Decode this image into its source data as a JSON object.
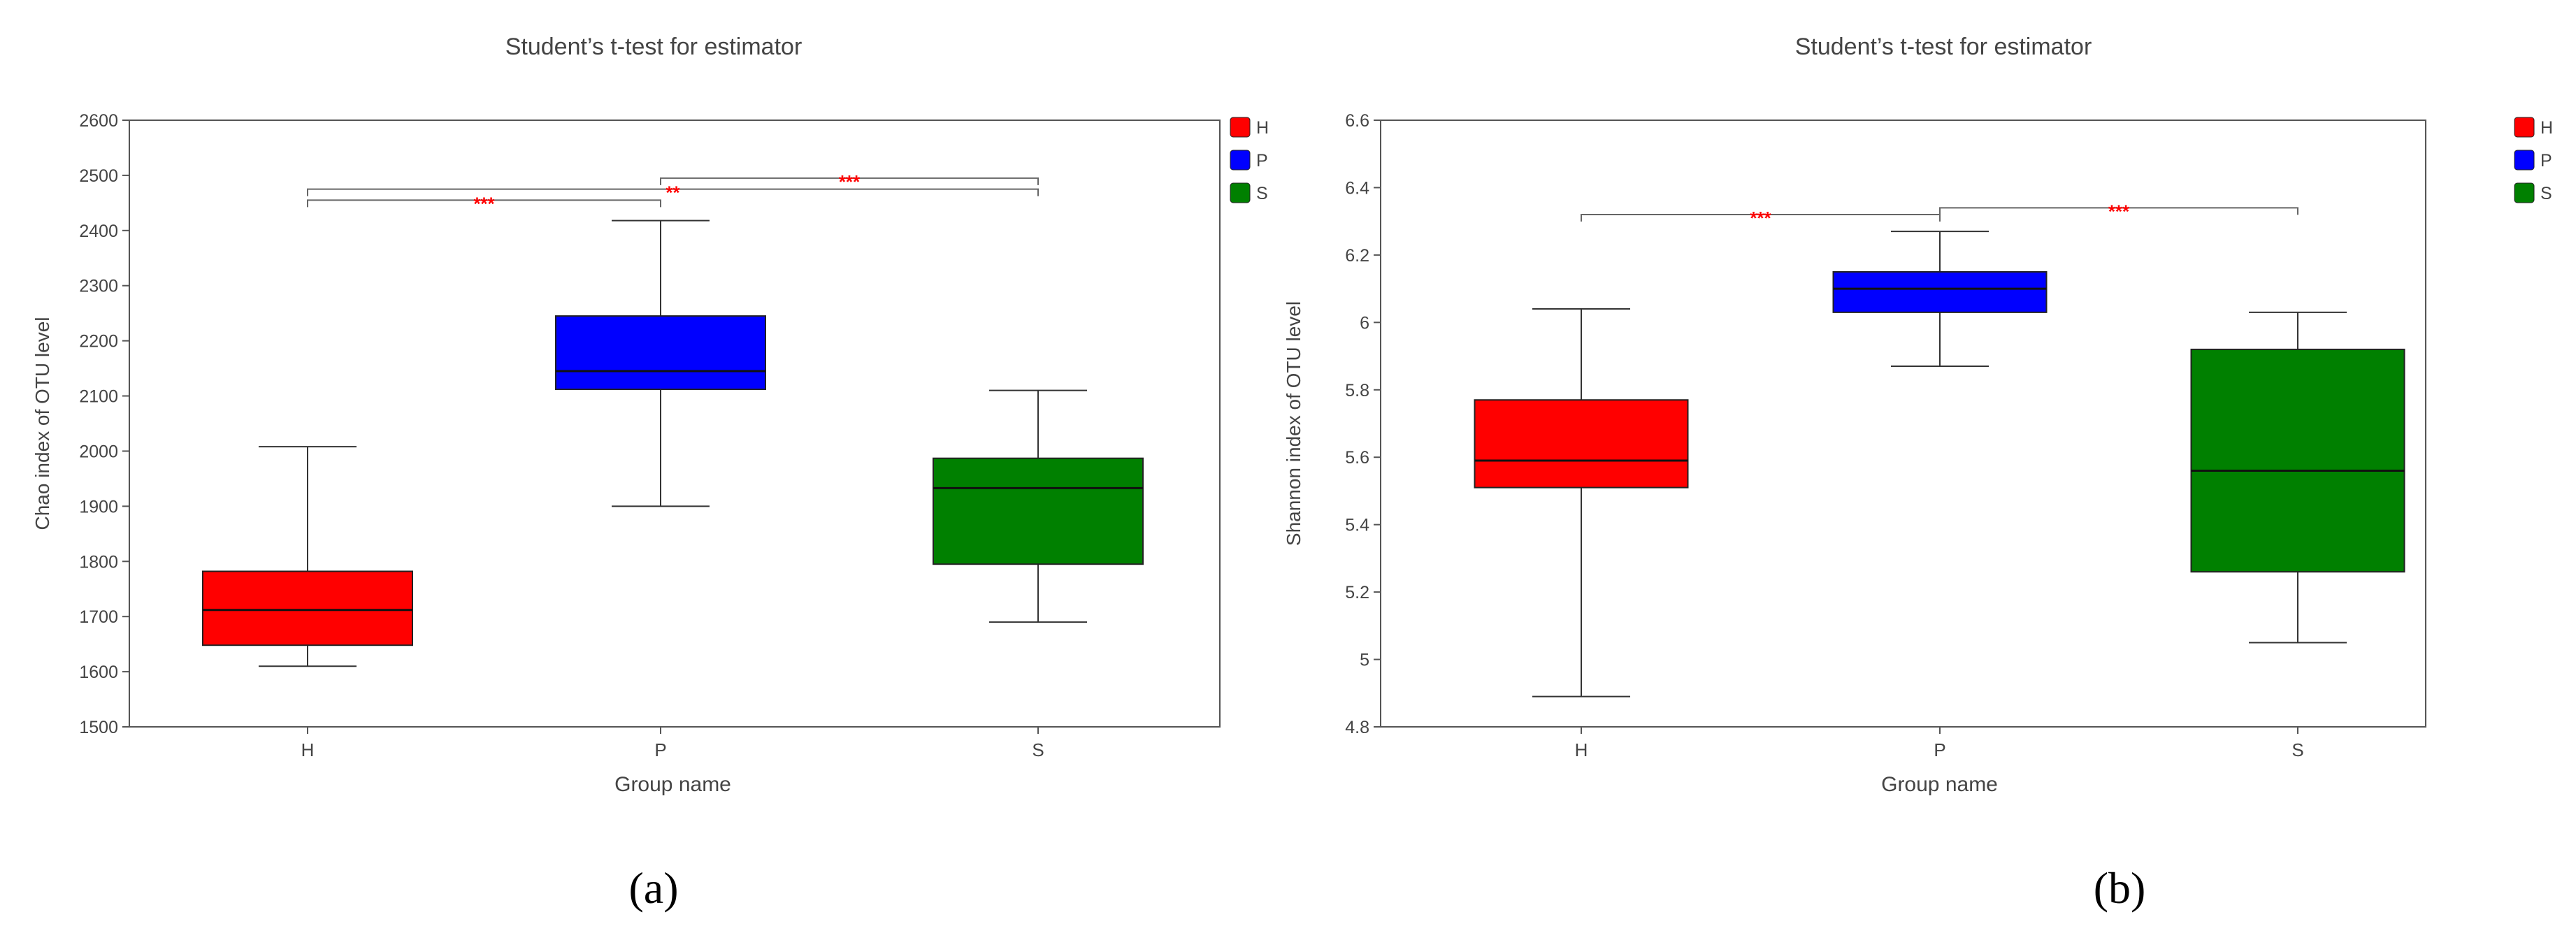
{
  "chart_data": [
    {
      "type": "box",
      "title": "Student’s t-test for estimator",
      "xlabel": "Group name",
      "ylabel": "Chao index of OTU level",
      "ylim": [
        1500,
        2600
      ],
      "yticks": [
        "1500",
        "1600",
        "1700",
        "1800",
        "1900",
        "2000",
        "2100",
        "2200",
        "2300",
        "2400",
        "2500",
        "2600"
      ],
      "categories": [
        "H",
        "P",
        "S"
      ],
      "legend_position": "top-right",
      "grid": false,
      "caption": "(a)",
      "series": [
        {
          "name": "H",
          "color": "#ff0000",
          "min": 1610,
          "q1": 1648,
          "median": 1712,
          "q3": 1782,
          "max": 2008
        },
        {
          "name": "P",
          "color": "#0000ff",
          "min": 1900,
          "q1": 2112,
          "median": 2145,
          "q3": 2245,
          "max": 2418
        },
        {
          "name": "S",
          "color": "#008000",
          "min": 1690,
          "q1": 1795,
          "median": 1933,
          "q3": 1987,
          "max": 2110
        }
      ],
      "significance": [
        {
          "from": 0,
          "to": 1,
          "y": 2455,
          "label": "***"
        },
        {
          "from": 0,
          "to": 2,
          "y": 2475,
          "label": "**"
        },
        {
          "from": 1,
          "to": 2,
          "y": 2495,
          "label": "***"
        }
      ]
    },
    {
      "type": "box",
      "title": "Student’s t-test for estimator",
      "xlabel": "Group name",
      "ylabel": "Shannon index of OTU level",
      "ylim": [
        4.8,
        6.6
      ],
      "yticks": [
        "4.8",
        "5",
        "5.2",
        "5.4",
        "5.6",
        "5.8",
        "6",
        "6.2",
        "6.4",
        "6.6"
      ],
      "categories": [
        "H",
        "P",
        "S"
      ],
      "legend_position": "top-right",
      "grid": false,
      "caption": "(b)",
      "series": [
        {
          "name": "H",
          "color": "#ff0000",
          "min": 4.89,
          "q1": 5.51,
          "median": 5.59,
          "q3": 5.77,
          "max": 6.04
        },
        {
          "name": "P",
          "color": "#0000ff",
          "min": 5.87,
          "q1": 6.03,
          "median": 6.1,
          "q3": 6.15,
          "max": 6.27
        },
        {
          "name": "S",
          "color": "#008000",
          "min": 5.05,
          "q1": 5.26,
          "median": 5.56,
          "q3": 5.92,
          "max": 6.03
        }
      ],
      "significance": [
        {
          "from": 0,
          "to": 1,
          "y": 6.32,
          "label": "***"
        },
        {
          "from": 1,
          "to": 2,
          "y": 6.34,
          "label": "***"
        }
      ]
    }
  ]
}
